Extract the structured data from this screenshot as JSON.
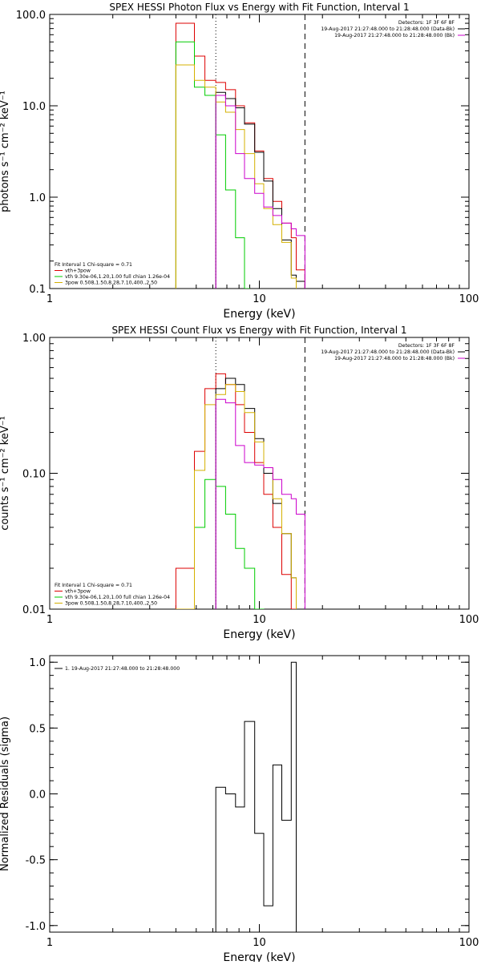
{
  "chart_data": [
    {
      "type": "line",
      "title": "SPEX HESSI Photon Flux vs Energy with Fit Function, Interval 1",
      "xlabel": "Energy (keV)",
      "ylabel": "photons s⁻¹ cm⁻² keV⁻¹",
      "xscale": "log",
      "yscale": "log",
      "xlim": [
        1,
        100
      ],
      "ylim": [
        0.1,
        100
      ],
      "xticks": [
        "1",
        "10",
        "100"
      ],
      "yticks": [
        "0.1",
        "1.0",
        "10.0",
        "100.0"
      ],
      "yticks_values": [
        0.1,
        1,
        10,
        100
      ],
      "vlines": [
        {
          "x": 6.2,
          "style": "dotted",
          "color": "#000000"
        },
        {
          "x": 16.5,
          "style": "dashed",
          "color": "#000000"
        }
      ],
      "info_right": [
        "Detectors: 1F 3F 6F 8F",
        "19-Aug-2017 21:27:48.000 to 21:28:48.000 (Data-Bk)",
        "19-Aug-2017 21:27:48.000 to 21:28:48.000 (Bk)"
      ],
      "info_right_colors": [
        "#000000",
        "#000000",
        "#cc00cc"
      ],
      "info_left": [
        "Fit Interval  1     Chi-square = 0.71",
        "vth+3pow",
        "vth 9.30e-06,1.20,1.00  full chian 1.26e-04",
        "3pow 0.508,1.50,8.28,7.10,400.,2.50"
      ],
      "info_left_colors": [
        "#000000",
        "#dd0000",
        "#00cc00",
        "#d4b000"
      ],
      "series": [
        {
          "color": "#dd0000",
          "edges": [
            4.0,
            4.9,
            5.5,
            6.2,
            6.9,
            7.7,
            8.5,
            9.5,
            10.5,
            11.6,
            12.8,
            14.2,
            15.0,
            16.5
          ],
          "values": [
            80,
            35,
            19,
            18,
            15,
            10,
            6.5,
            3.2,
            1.6,
            0.9,
            0.52,
            0.36,
            0.16
          ]
        },
        {
          "color": "#000000",
          "edges": [
            6.2,
            6.9,
            7.7,
            8.5,
            9.5,
            10.5,
            11.6,
            12.8,
            14.2,
            15.0,
            16.5
          ],
          "values": [
            14,
            12,
            9.5,
            6.3,
            3.1,
            1.5,
            0.75,
            0.34,
            0.14,
            0.12
          ]
        },
        {
          "color": "#00cc00",
          "edges": [
            4.0,
            4.9,
            5.5,
            6.2,
            6.9,
            7.7,
            8.5,
            9.0
          ],
          "values": [
            50,
            16,
            13,
            4.8,
            1.2,
            0.36,
            0.1
          ]
        },
        {
          "color": "#d4b000",
          "edges": [
            4.0,
            4.9,
            5.5,
            6.2,
            6.9,
            7.7,
            8.5,
            9.5,
            10.5,
            11.6,
            12.8,
            14.2,
            15.0
          ],
          "values": [
            28,
            19,
            16,
            11,
            8.5,
            5.5,
            3.0,
            1.4,
            0.75,
            0.5,
            0.32,
            0.13
          ]
        },
        {
          "color": "#cc00cc",
          "edges": [
            6.2,
            6.9,
            7.7,
            8.5,
            9.5,
            10.5,
            11.6,
            12.8,
            14.2,
            15.0,
            16.5
          ],
          "values": [
            13,
            10,
            3.0,
            1.6,
            1.1,
            0.78,
            0.63,
            0.52,
            0.45,
            0.38
          ]
        }
      ]
    },
    {
      "type": "line",
      "title": "SPEX HESSI Count Flux vs Energy with Fit Function, Interval 1",
      "xlabel": "Energy (keV)",
      "ylabel": "counts s⁻¹ cm⁻² keV⁻¹",
      "xscale": "log",
      "yscale": "log",
      "xlim": [
        1,
        100
      ],
      "ylim": [
        0.01,
        1
      ],
      "xticks": [
        "1",
        "10",
        "100"
      ],
      "yticks": [
        "0.01",
        "0.10",
        "1.00"
      ],
      "yticks_values": [
        0.01,
        0.1,
        1
      ],
      "vlines": [
        {
          "x": 6.2,
          "style": "dotted",
          "color": "#000000"
        },
        {
          "x": 16.5,
          "style": "dashed",
          "color": "#000000"
        }
      ],
      "info_right": [
        "Detectors: 1F 3F 6F 8F",
        "19-Aug-2017 21:27:48.000 to 21:28:48.000 (Data-Bk)",
        "19-Aug-2017 21:27:48.000 to 21:28:48.000 (Bk)"
      ],
      "info_right_colors": [
        "#000000",
        "#000000",
        "#cc00cc"
      ],
      "info_left": [
        "Fit Interval  1     Chi-square = 0.71",
        "vth+3pow",
        "vth 9.30e-06,1.20,1.00  full chian 1.26e-04",
        "3pow 0.508,1.50,8.28,7.10,400.,2.50"
      ],
      "info_left_colors": [
        "#000000",
        "#dd0000",
        "#00cc00",
        "#d4b000"
      ],
      "series": [
        {
          "color": "#dd0000",
          "edges": [
            4.0,
            4.9,
            5.5,
            6.2,
            6.9,
            7.7,
            8.5,
            9.5,
            10.5,
            11.6,
            12.8,
            14.2,
            15.0
          ],
          "values": [
            0.02,
            0.145,
            0.42,
            0.54,
            0.45,
            0.32,
            0.2,
            0.12,
            0.07,
            0.04,
            0.018,
            0.01
          ]
        },
        {
          "color": "#000000",
          "edges": [
            6.2,
            6.9,
            7.7,
            8.5,
            9.5,
            10.5,
            11.6,
            12.8,
            14.2,
            15.0
          ],
          "values": [
            0.42,
            0.5,
            0.45,
            0.3,
            0.18,
            0.1,
            0.06,
            0.036,
            0.017
          ]
        },
        {
          "color": "#00cc00",
          "edges": [
            4.9,
            5.5,
            6.2,
            6.9,
            7.7,
            8.5,
            9.5,
            10.5
          ],
          "values": [
            0.04,
            0.09,
            0.08,
            0.05,
            0.028,
            0.02,
            0.01
          ]
        },
        {
          "color": "#d4b000",
          "edges": [
            4.0,
            4.9,
            5.5,
            6.2,
            6.9,
            7.7,
            8.5,
            9.5,
            10.5,
            11.6,
            12.8,
            14.2,
            15.0
          ],
          "values": [
            0.01,
            0.105,
            0.32,
            0.38,
            0.45,
            0.4,
            0.28,
            0.17,
            0.11,
            0.065,
            0.036,
            0.017
          ]
        },
        {
          "color": "#cc00cc",
          "edges": [
            6.2,
            6.9,
            7.7,
            8.5,
            9.5,
            10.5,
            11.6,
            12.8,
            14.2,
            15.0,
            16.5
          ],
          "values": [
            0.35,
            0.33,
            0.16,
            0.12,
            0.115,
            0.11,
            0.09,
            0.07,
            0.065,
            0.05
          ]
        }
      ]
    },
    {
      "type": "line",
      "title": "",
      "xlabel": "Energy (keV)",
      "ylabel": "Normalized Residuals (sigma)",
      "xscale": "log",
      "yscale": "linear",
      "xlim": [
        1,
        100
      ],
      "ylim": [
        -1.05,
        1.05
      ],
      "xticks": [
        "1",
        "10",
        "100"
      ],
      "yticks": [
        "-1.0",
        "-0.5",
        "0.0",
        "0.5",
        "1.0"
      ],
      "yticks_values": [
        -1,
        -0.5,
        0,
        0.5,
        1
      ],
      "vlines": [],
      "info_right": [],
      "info_right_colors": [],
      "info_left": [
        "1. 19-Aug-2017 21:27:48.000 to 21:28:48.000"
      ],
      "info_left_colors": [
        "#000000"
      ],
      "series": [
        {
          "color": "#000000",
          "edges": [
            6.2,
            6.9,
            7.7,
            8.5,
            9.5,
            10.5,
            11.6,
            12.8,
            14.2,
            15.0,
            16.5
          ],
          "values": [
            0.05,
            0.0,
            -0.1,
            0.55,
            -0.3,
            -0.85,
            0.22,
            -0.2,
            1.0,
            -1.05
          ]
        }
      ]
    }
  ]
}
